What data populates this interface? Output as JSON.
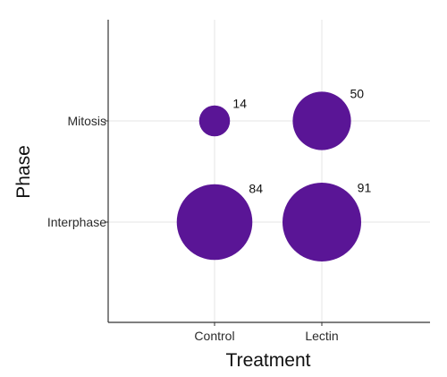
{
  "chart_data": {
    "type": "scatter",
    "title": "",
    "xlabel": "Treatment",
    "ylabel": "Phase",
    "x_categories": [
      "Control",
      "Lectin"
    ],
    "y_categories": [
      "Interphase",
      "Mitosis"
    ],
    "points": [
      {
        "x": "Control",
        "y": "Mitosis",
        "value": 14
      },
      {
        "x": "Lectin",
        "y": "Mitosis",
        "value": 50
      },
      {
        "x": "Control",
        "y": "Interphase",
        "value": 84
      },
      {
        "x": "Lectin",
        "y": "Interphase",
        "value": 91
      }
    ],
    "size_encodes": "value",
    "grid": true,
    "legend": "none",
    "colors": {
      "bubble": "#5a1596",
      "grid": "#e6e6e6",
      "axis": "#333333"
    }
  }
}
